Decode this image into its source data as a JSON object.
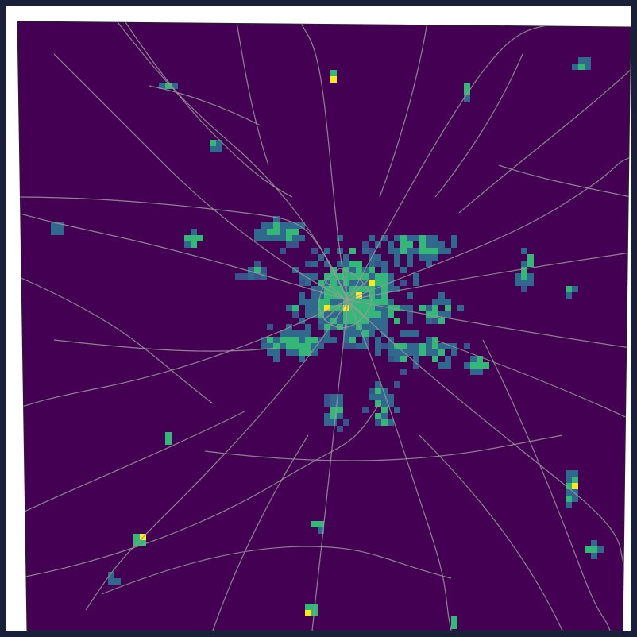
{
  "map": {
    "type": "raster-heatmap",
    "colormap": "viridis",
    "colors": {
      "background": "#440154",
      "low": "#31688e",
      "mid": "#35b779",
      "high": "#fde725",
      "roads": "#9a9a9a",
      "frame": "#ffffff",
      "page": "#1a1f3a"
    },
    "legend": null,
    "title": null,
    "axes": "none"
  }
}
